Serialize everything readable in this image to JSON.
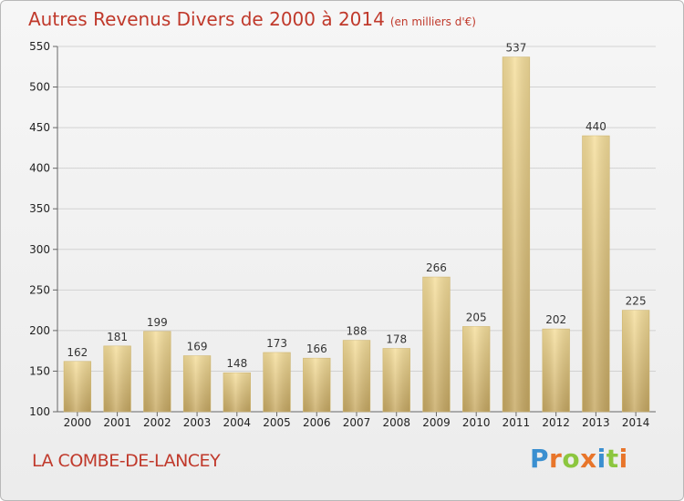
{
  "chart_data": {
    "type": "bar",
    "title": "Autres Revenus Divers de 2000 à 2014",
    "unit": "(en milliers d'€)",
    "categories": [
      "2000",
      "2001",
      "2002",
      "2003",
      "2004",
      "2005",
      "2006",
      "2007",
      "2008",
      "2009",
      "2010",
      "2011",
      "2012",
      "2013",
      "2014"
    ],
    "values": [
      162,
      181,
      199,
      169,
      148,
      173,
      166,
      188,
      178,
      266,
      205,
      537,
      202,
      440,
      225
    ],
    "ylim": [
      100,
      550
    ],
    "yticks": [
      100,
      150,
      200,
      250,
      300,
      350,
      400,
      450,
      500,
      550
    ],
    "grid": true,
    "bar_color": "#e8cd85"
  },
  "footer": {
    "location": "LA COMBE-DE-LANCEY"
  },
  "logo": {
    "letters": [
      "P",
      "r",
      "o",
      "x",
      "i",
      "t",
      "i"
    ],
    "colors": [
      "#3a8fd0",
      "#e8752a",
      "#8cc63f",
      "#e8752a",
      "#3a8fd0",
      "#8cc63f",
      "#e8752a"
    ]
  }
}
